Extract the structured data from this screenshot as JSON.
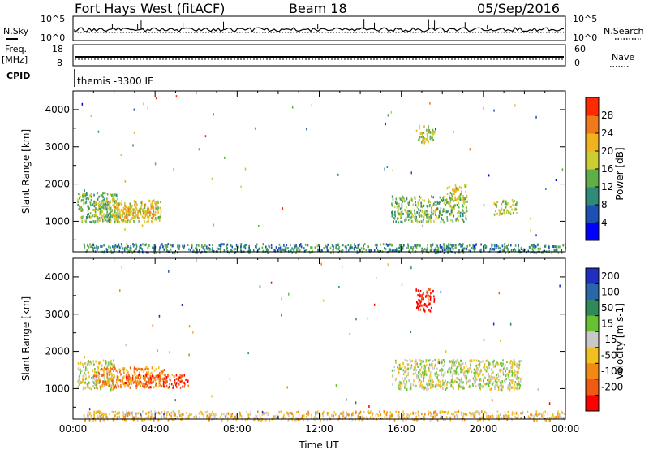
{
  "header": {
    "station": "Fort Hays West (fitACF)",
    "beam": "Beam 18",
    "date": "05/Sep/2016"
  },
  "panels": {
    "nsky_label": "N.Sky",
    "nsearch_label": "N.Search",
    "noise_ticks": [
      "10^5",
      "10^0"
    ],
    "freq_label_top": "Freq.",
    "freq_label_unit": "[MHz]",
    "freq_ticks": [
      "18",
      "8"
    ],
    "nave_label": "Nave",
    "nave_ticks": [
      "60",
      "0"
    ],
    "cpid_label": "CPID",
    "cpid_value": "themis -3300 IF"
  },
  "chart_data": [
    {
      "type": "heatmap",
      "name": "power",
      "ylabel": "Slant Range [km]",
      "xlabel": "",
      "y_ticks": [
        "1000",
        "2000",
        "3000",
        "4000"
      ],
      "ylim": [
        180,
        4500
      ],
      "colorbar_label": "Power [dB]",
      "colorbar_ticks": [
        "4",
        "8",
        "12",
        "16",
        "20",
        "24",
        "28"
      ],
      "colors": [
        "#0000ff",
        "#1e4fb4",
        "#2f8a78",
        "#5fae4a",
        "#cccc33",
        "#f0b21e",
        "#f07a1a",
        "#ff2a00"
      ],
      "clusters": [
        {
          "t0": 0.2,
          "t1": 2.2,
          "r0": 1000,
          "r1": 1800,
          "level": 3
        },
        {
          "t0": 1.0,
          "t1": 4.3,
          "r0": 1000,
          "r1": 1600,
          "level": 4
        },
        {
          "t0": 2.0,
          "t1": 4.0,
          "r0": 1100,
          "r1": 1500,
          "level": 5
        },
        {
          "t0": 15.5,
          "t1": 19.2,
          "r0": 1000,
          "r1": 1700,
          "level": 3
        },
        {
          "t0": 18.2,
          "t1": 19.2,
          "r0": 1600,
          "r1": 2000,
          "level": 4
        },
        {
          "t0": 20.5,
          "t1": 21.6,
          "r0": 1200,
          "r1": 1600,
          "level": 4
        },
        {
          "t0": 16.7,
          "t1": 17.6,
          "r0": 3100,
          "r1": 3600,
          "level": 4
        },
        {
          "t0": 0.5,
          "t1": 24.0,
          "r0": 180,
          "r1": 420,
          "level": 2
        }
      ]
    },
    {
      "type": "heatmap",
      "name": "velocity",
      "ylabel": "Slant Range [km]",
      "xlabel": "Time UT",
      "x_ticks": [
        "00:00",
        "04:00",
        "08:00",
        "12:00",
        "16:00",
        "20:00",
        "00:00"
      ],
      "xlim": [
        0,
        24
      ],
      "y_ticks": [
        "1000",
        "2000",
        "3000",
        "4000"
      ],
      "ylim": [
        180,
        4500
      ],
      "colorbar_label": "Velocity [m s-1]",
      "colorbar_ticks": [
        "200",
        "100",
        "50",
        "15",
        "-15",
        "-50",
        "-100",
        "-200"
      ],
      "colors": [
        "#1f2fbf",
        "#2a66aa",
        "#2f8a5a",
        "#66c233",
        "#c8c8c8",
        "#f0c020",
        "#f08a14",
        "#f05a14",
        "#ff0000"
      ],
      "clusters": [
        {
          "t0": 0.2,
          "t1": 2.0,
          "r0": 1000,
          "r1": 1800,
          "level": 4
        },
        {
          "t0": 1.0,
          "t1": 4.5,
          "r0": 1050,
          "r1": 1600,
          "level": 6
        },
        {
          "t0": 2.5,
          "t1": 5.6,
          "r0": 1050,
          "r1": 1400,
          "level": 7
        },
        {
          "t0": 15.5,
          "t1": 21.8,
          "r0": 1000,
          "r1": 1800,
          "level": 4
        },
        {
          "t0": 16.7,
          "t1": 17.6,
          "r0": 3100,
          "r1": 3700,
          "level": 8
        },
        {
          "t0": 0.5,
          "t1": 24.0,
          "r0": 180,
          "r1": 420,
          "level": 5
        }
      ]
    }
  ]
}
